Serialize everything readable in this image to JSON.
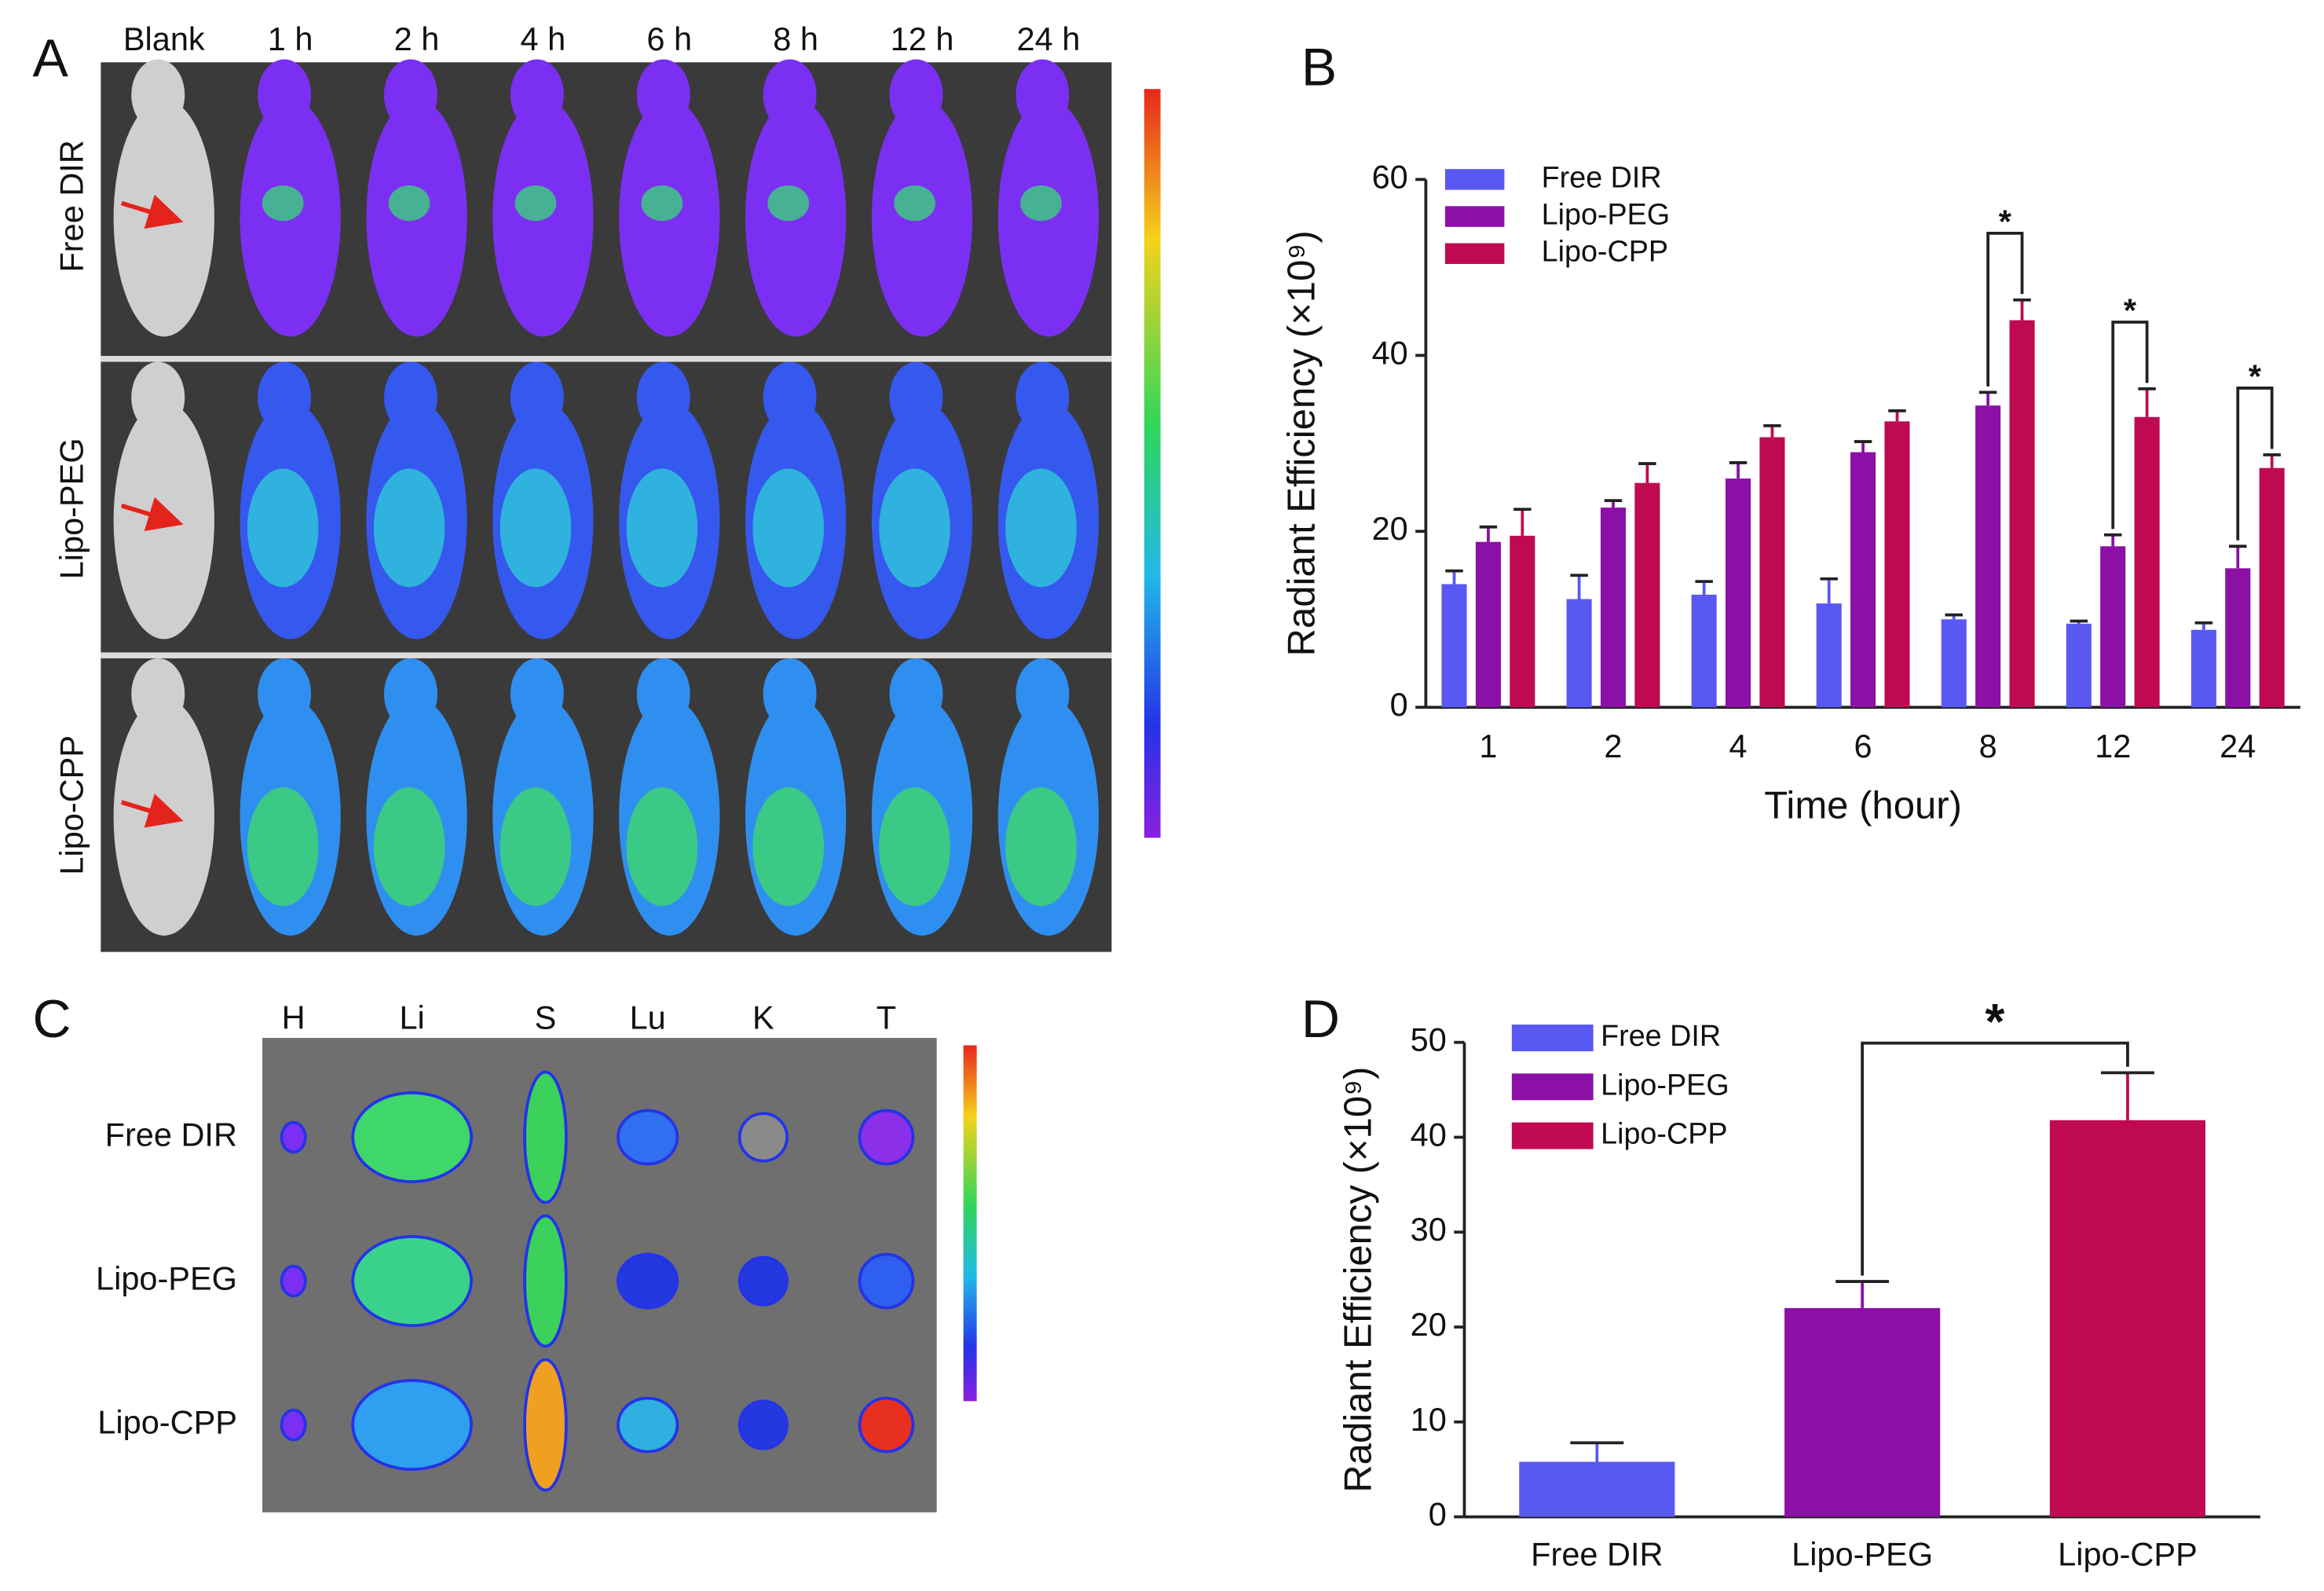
{
  "panel_labels": [
    "A",
    "B",
    "C",
    "D"
  ],
  "panel_a": {
    "columns": [
      "Blank",
      "1 h",
      "2 h",
      "4 h",
      "6 h",
      "8 h",
      "12 h",
      "24 h"
    ],
    "rows": [
      "Free DIR",
      "Lipo-PEG",
      "Lipo-CPP"
    ]
  },
  "panel_c": {
    "columns": [
      "H",
      "Li",
      "S",
      "Lu",
      "K",
      "T"
    ],
    "rows": [
      "Free DIR",
      "Lipo-PEG",
      "Lipo-CPP"
    ]
  },
  "chart_data": [
    {
      "type": "bar",
      "y_label": "Radiant Efficiency (×10⁹)",
      "x_label": "Time (hour)",
      "categories": [
        "1",
        "2",
        "4",
        "6",
        "8",
        "12",
        "24"
      ],
      "series": [
        {
          "name": "Free DIR",
          "color": "#5a58f2",
          "values": [
            14,
            12.3,
            12.8,
            11.8,
            10,
            9.5,
            8.8
          ],
          "errors": [
            1.5,
            2.7,
            1.5,
            2.8,
            0.5,
            0.3,
            0.8
          ]
        },
        {
          "name": "Lipo-PEG",
          "color": "#8a10a6",
          "values": [
            18.8,
            22.7,
            26,
            29,
            34.3,
            18.3,
            15.8
          ],
          "errors": [
            1.7,
            0.8,
            1.8,
            1.2,
            1.5,
            1.3,
            2.5
          ]
        },
        {
          "name": "Lipo-CPP",
          "color": "#bf0a52",
          "values": [
            19.5,
            25.5,
            30.7,
            32.5,
            44,
            33,
            27.2
          ],
          "errors": [
            3,
            2.2,
            1.3,
            1.2,
            2.3,
            3.2,
            1.5
          ]
        }
      ],
      "ylim": [
        0,
        60
      ],
      "yticks": [
        0,
        20,
        40,
        60
      ],
      "annotations": [
        {
          "text": "*",
          "category": "8"
        },
        {
          "text": "*",
          "category": "12"
        },
        {
          "text": "*",
          "category": "24"
        }
      ]
    },
    {
      "type": "bar",
      "y_label": "Radiant Efficiency (×10⁹)",
      "categories": [
        "Free DIR",
        "Lipo-PEG",
        "Lipo-CPP"
      ],
      "values": [
        5.8,
        22,
        41.8
      ],
      "errors": [
        2,
        2.8,
        5
      ],
      "colors": [
        "#5a58f2",
        "#8a10a6",
        "#bf0a52"
      ],
      "ylim": [
        0,
        50
      ],
      "yticks": [
        0,
        10,
        20,
        30,
        40,
        50
      ],
      "annotations": [
        {
          "text": "*",
          "between": [
            "Lipo-PEG",
            "Lipo-CPP"
          ]
        }
      ]
    }
  ]
}
